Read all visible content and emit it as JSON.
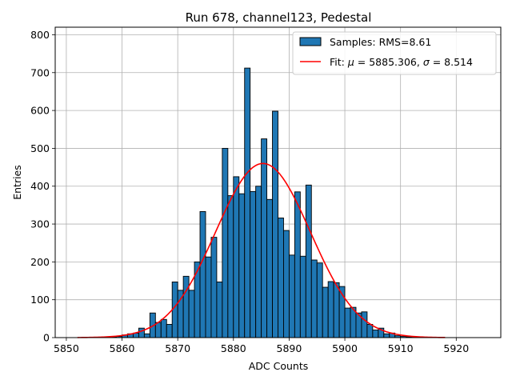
{
  "chart_data": {
    "type": "histogram",
    "title": "Run 678, channel123, Pedestal",
    "xlabel": "ADC Counts",
    "ylabel": "Entries",
    "xlim": [
      5848,
      5928
    ],
    "ylim": [
      0,
      820
    ],
    "xticks": [
      5850,
      5860,
      5870,
      5880,
      5890,
      5900,
      5910,
      5920
    ],
    "yticks": [
      0,
      100,
      200,
      300,
      400,
      500,
      600,
      700,
      800
    ],
    "grid": true,
    "bar_color": "#1f77b4",
    "fit_color": "#ff0000",
    "histogram": {
      "name": "Samples: RMS=8.61",
      "bin_start": 5858,
      "bin_width": 1,
      "counts": [
        2,
        3,
        7,
        10,
        12,
        25,
        10,
        65,
        40,
        48,
        35,
        147,
        125,
        162,
        125,
        200,
        333,
        213,
        265,
        147,
        500,
        375,
        425,
        380,
        712,
        386,
        400,
        525,
        365,
        598,
        316,
        283,
        218,
        385,
        215,
        403,
        205,
        197,
        133,
        148,
        145,
        135,
        78,
        80,
        65,
        68,
        35,
        20,
        25,
        10,
        12,
        5,
        3,
        2,
        1
      ]
    },
    "fit": {
      "name_prefix": "Fit: ",
      "mu": 5885.306,
      "sigma": 8.514,
      "amplitude": 460,
      "x_range": [
        5852,
        5918
      ]
    },
    "legend": {
      "position": "upper right",
      "entries": [
        {
          "label": "Samples: RMS=8.61",
          "kind": "bar"
        },
        {
          "label_parts": [
            "Fit: ",
            "μ",
            " = 5885.306, ",
            "σ",
            " = 8.514"
          ],
          "kind": "line"
        }
      ]
    }
  }
}
